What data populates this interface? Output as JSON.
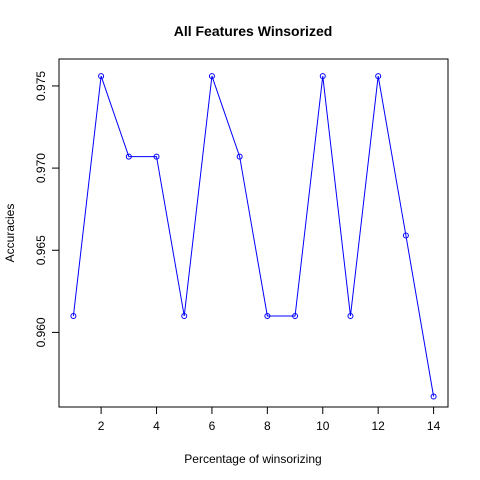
{
  "chart_data": {
    "type": "line",
    "title": "All Features Winsorized",
    "xlabel": "Percentage of winsorizing",
    "ylabel": "Accuracies",
    "x": [
      1,
      2,
      3,
      4,
      5,
      6,
      7,
      8,
      9,
      10,
      11,
      12,
      13,
      14
    ],
    "series": [
      {
        "values": [
          0.961,
          0.9756,
          0.9707,
          0.9707,
          0.961,
          0.9756,
          0.9707,
          0.961,
          0.961,
          0.9756,
          0.961,
          0.9756,
          0.9659,
          0.9561
        ],
        "color": "#0000ff",
        "marker": "open-circle"
      }
    ],
    "xticks": [
      2,
      4,
      6,
      8,
      10,
      12,
      14
    ],
    "yticks": [
      0.96,
      0.965,
      0.97,
      0.975
    ],
    "ytick_labels": [
      "0.960",
      "0.965",
      "0.970",
      "0.975"
    ],
    "xlim": [
      0.48,
      14.52
    ],
    "ylim": [
      0.95546,
      0.97664
    ],
    "grid": false,
    "legend": "none"
  }
}
